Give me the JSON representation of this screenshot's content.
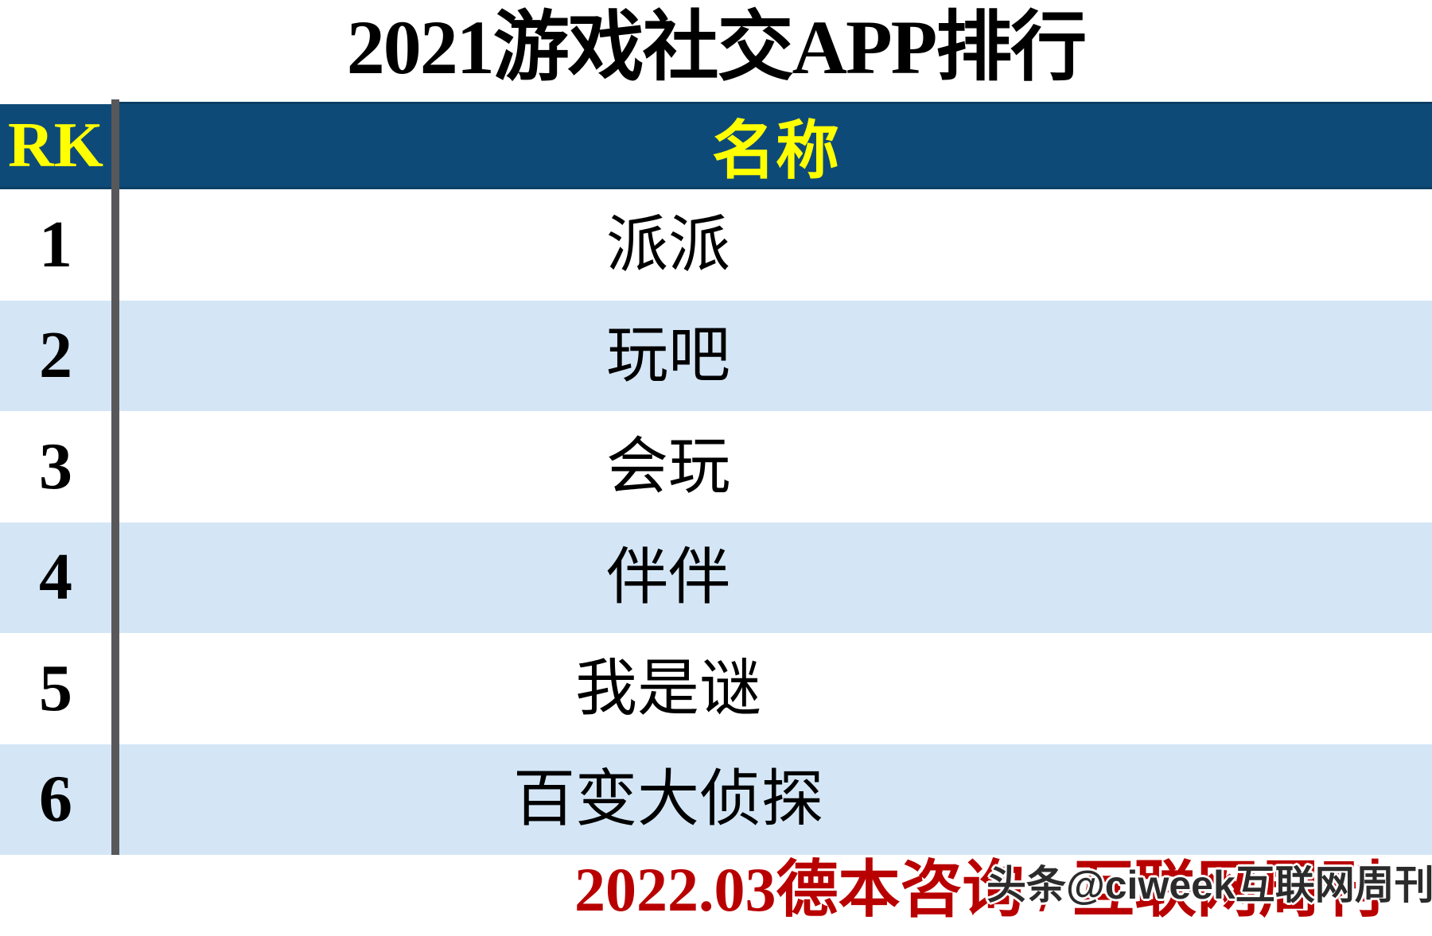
{
  "title": "2021游戏社交APP排行",
  "table": {
    "rank_header": "RK",
    "name_header": "名称",
    "rows": [
      {
        "rank": "1",
        "name": "派派"
      },
      {
        "rank": "2",
        "name": "玩吧"
      },
      {
        "rank": "3",
        "name": "会玩"
      },
      {
        "rank": "4",
        "name": "伴伴"
      },
      {
        "rank": "5",
        "name": "我是谜"
      },
      {
        "rank": "6",
        "name": "百变大侦探"
      }
    ]
  },
  "footer": {
    "credit": "2022.03德本咨询 / 互联网周刊",
    "watermark": "头条@ciweek互联网周刊"
  },
  "colors": {
    "header_bg": "#0e4a78",
    "header_text": "#ffff00",
    "alt_row_bg": "#d4e6f6",
    "divider_gray": "#58585a",
    "credit_red": "#b90000",
    "watermark_ink": "#2b2b2b"
  },
  "chart_data": {
    "type": "table",
    "title": "2021游戏社交APP排行",
    "columns": [
      "RK",
      "名称"
    ],
    "rows": [
      [
        "1",
        "派派"
      ],
      [
        "2",
        "玩吧"
      ],
      [
        "3",
        "会玩"
      ],
      [
        "4",
        "伴伴"
      ],
      [
        "5",
        "我是谜"
      ],
      [
        "6",
        "百变大侦探"
      ]
    ],
    "source_note": "2022.03德本咨询 / 互联网周刊"
  }
}
